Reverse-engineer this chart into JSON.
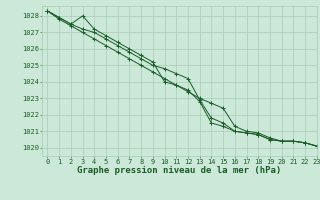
{
  "bg_color": "#cce8d8",
  "grid_color": "#a8ccb8",
  "line_color": "#1a5c28",
  "title": "Graphe pression niveau de la mer (hPa)",
  "xlim": [
    -0.5,
    23
  ],
  "ylim": [
    1019.5,
    1028.6
  ],
  "yticks": [
    1020,
    1021,
    1022,
    1023,
    1024,
    1025,
    1026,
    1027,
    1028
  ],
  "xticks": [
    0,
    1,
    2,
    3,
    4,
    5,
    6,
    7,
    8,
    9,
    10,
    11,
    12,
    13,
    14,
    15,
    16,
    17,
    18,
    19,
    20,
    21,
    22,
    23
  ],
  "line1": [
    1028.3,
    1027.9,
    1027.5,
    1028.0,
    1027.2,
    1026.8,
    1026.4,
    1026.0,
    1025.6,
    1025.2,
    1024.0,
    1023.8,
    1023.5,
    1022.8,
    1021.5,
    1021.3,
    1021.0,
    1020.9,
    1020.8,
    1020.5,
    1020.4,
    1020.4,
    1020.3,
    1020.1
  ],
  "line2": [
    1028.3,
    1027.9,
    1027.5,
    1027.2,
    1027.0,
    1026.6,
    1026.2,
    1025.8,
    1025.4,
    1025.0,
    1024.8,
    1024.5,
    1024.2,
    1022.9,
    1021.8,
    1021.5,
    1021.0,
    1020.9,
    1020.8,
    1020.5,
    1020.4,
    1020.4,
    1020.3,
    1020.1
  ],
  "line3": [
    1028.3,
    1027.8,
    1027.4,
    1027.0,
    1026.6,
    1026.2,
    1025.8,
    1025.4,
    1025.0,
    1024.6,
    1024.2,
    1023.8,
    1023.4,
    1023.0,
    1022.7,
    1022.4,
    1021.3,
    1021.0,
    1020.9,
    1020.6,
    1020.4,
    1020.4,
    1020.3,
    1020.1
  ],
  "title_fontsize": 6.5,
  "tick_fontsize": 5.0,
  "title_color": "#1a5c28",
  "tick_color": "#1a5c28"
}
